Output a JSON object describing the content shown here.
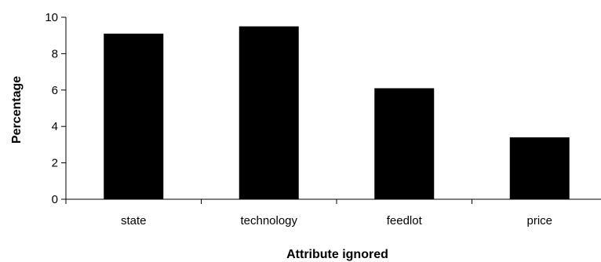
{
  "chart_data": {
    "type": "bar",
    "categories": [
      "state",
      "technology",
      "feedlot",
      "price"
    ],
    "values": [
      9.1,
      9.5,
      6.1,
      3.4
    ],
    "title": "",
    "xlabel": "Attribute ignored",
    "ylabel": "Percentage",
    "ylim": [
      0,
      10
    ],
    "yticks": [
      "0",
      "2",
      "4",
      "6",
      "8",
      "10"
    ],
    "grid": false,
    "legend": "none",
    "bar_color": "#000000"
  }
}
